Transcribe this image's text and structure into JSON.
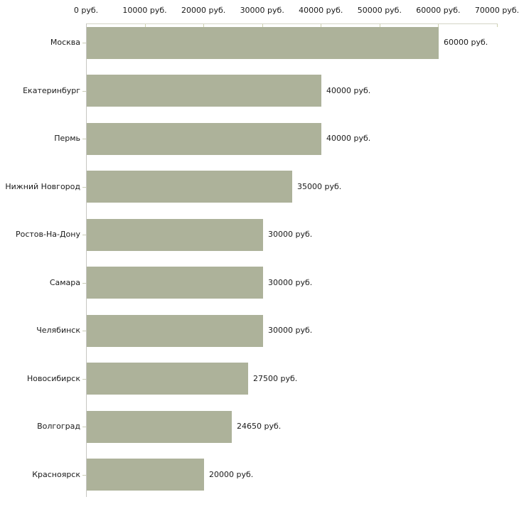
{
  "chart_data": {
    "type": "bar",
    "orientation": "horizontal",
    "title": "",
    "categories": [
      "Москва",
      "Екатеринбург",
      "Пермь",
      "Нижний Новгород",
      "Ростов-На-Дону",
      "Самара",
      "Челябинск",
      "Новосибирск",
      "Волгоград",
      "Красноярск"
    ],
    "values": [
      60000,
      40000,
      40000,
      35000,
      30000,
      30000,
      30000,
      27500,
      24650,
      20000
    ],
    "value_labels": [
      "60000 руб.",
      "40000 руб.",
      "40000 руб.",
      "35000 руб.",
      "30000 руб.",
      "30000 руб.",
      "30000 руб.",
      "27500 руб.",
      "24650 руб.",
      "20000 руб."
    ],
    "x_tick_values": [
      0,
      10000,
      20000,
      30000,
      40000,
      50000,
      60000,
      70000
    ],
    "x_tick_labels": [
      "0 руб.",
      "10000 руб.",
      "20000 руб.",
      "30000 руб.",
      "40000 руб.",
      "50000 руб.",
      "60000 руб.",
      "70000 руб."
    ],
    "xlim": [
      0,
      70000
    ],
    "unit_suffix": " руб.",
    "grid": false,
    "legend": false,
    "colors": {
      "bar": "#adb29a",
      "x_axis_line": "#d4d5c6",
      "x_tick": "#cdd0ae",
      "y_axis_line": "#c6c6c2",
      "y_tick": "#c9ccb6",
      "text": "#1a1a1a",
      "background": "#ffffff"
    }
  }
}
